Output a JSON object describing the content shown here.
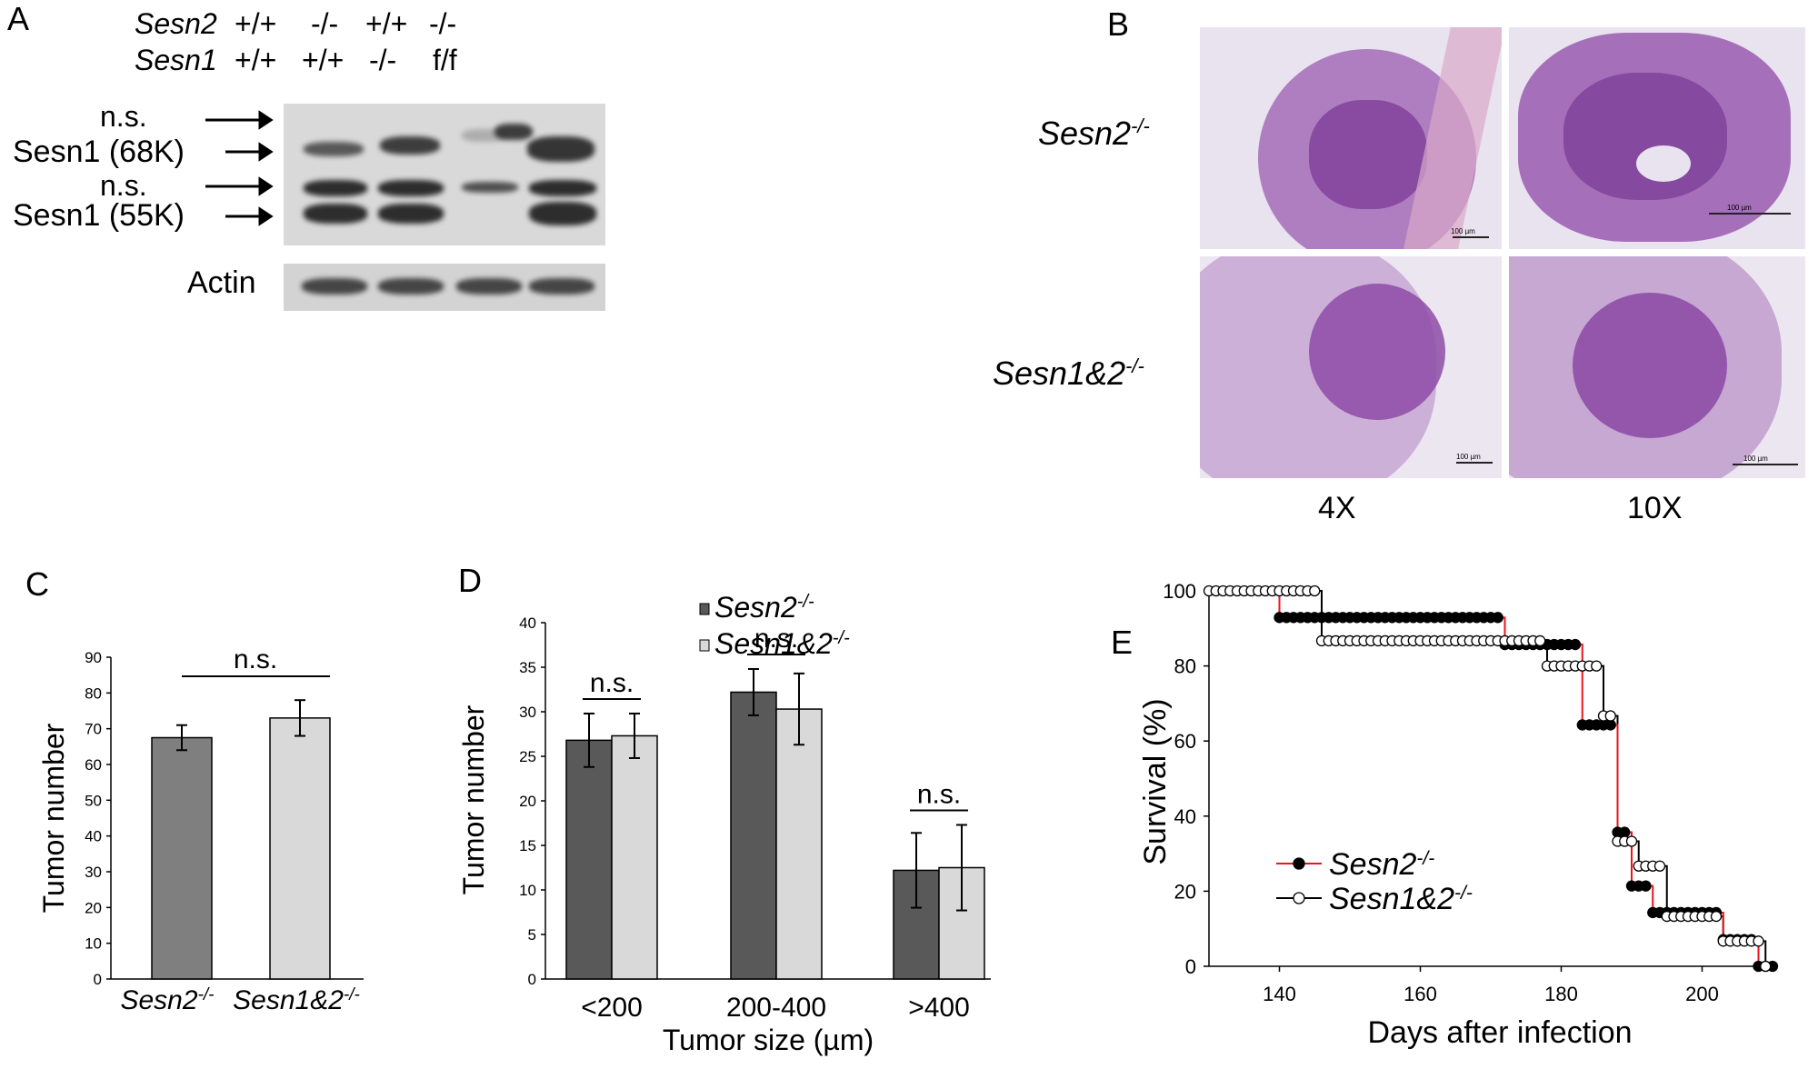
{
  "panels": {
    "A": "A",
    "B": "B",
    "C": "C",
    "D": "D",
    "E": "E"
  },
  "western_blot": {
    "row_labels": [
      "Sesn2",
      "Sesn1"
    ],
    "genotypes_sesn2": [
      "+/+",
      "-/-",
      "+/+",
      "-/-"
    ],
    "genotypes_sesn1": [
      "+/+",
      "+/+",
      "-/-",
      "f/f"
    ],
    "band_labels": [
      "n.s.",
      "Sesn1 (68K)",
      "n.s.",
      "Sesn1 (55K)"
    ],
    "loading_label": "Actin"
  },
  "histology": {
    "row_labels": [
      {
        "base": "Sesn2",
        "sup": "-/-"
      },
      {
        "base": "Sesn1&2",
        "sup": "-/-"
      }
    ],
    "magnifications": [
      "4X",
      "10X"
    ],
    "scale_bar_label": "100 µm"
  },
  "chart_data": [
    {
      "panel": "C",
      "type": "bar",
      "categories": [
        {
          "base": "Sesn2",
          "sup": "-/-"
        },
        {
          "base": "Sesn1&2",
          "sup": "-/-"
        }
      ],
      "values": [
        67.5,
        73
      ],
      "errors": [
        3.5,
        5
      ],
      "colors": [
        "#7f7f7f",
        "#d9d9d9"
      ],
      "ylabel": "Tumor number",
      "ylim": [
        0,
        90
      ],
      "yticks": [
        0,
        10,
        20,
        30,
        40,
        50,
        60,
        70,
        80,
        90
      ],
      "annotation": "n.s."
    },
    {
      "panel": "D",
      "type": "bar",
      "categories": [
        "<200",
        "200-400",
        ">400"
      ],
      "series": [
        {
          "name": {
            "base": "Sesn2",
            "sup": "-/-"
          },
          "values": [
            26.8,
            32.2,
            12.2
          ],
          "errors": [
            3,
            2.6,
            4.2
          ],
          "color": "#595959"
        },
        {
          "name": {
            "base": "Sesn1&2",
            "sup": "-/-"
          },
          "values": [
            27.3,
            30.3,
            12.5
          ],
          "errors": [
            2.5,
            4,
            4.8
          ],
          "color": "#d9d9d9"
        }
      ],
      "xlabel": "Tumor size (µm)",
      "ylabel": "Tumor number",
      "ylim": [
        0,
        40
      ],
      "yticks": [
        0,
        5,
        10,
        15,
        20,
        25,
        30,
        35,
        40
      ],
      "annotations": [
        "n.s.",
        "n.s.",
        "n.s."
      ],
      "legend_position": "top-right"
    },
    {
      "panel": "E",
      "type": "line",
      "step": true,
      "xlabel": "Days after infection",
      "ylabel": "Survival (%)",
      "xlim": [
        130,
        210
      ],
      "ylim": [
        0,
        100
      ],
      "xticks": [
        140,
        160,
        180,
        200
      ],
      "yticks": [
        0,
        20,
        40,
        60,
        80,
        100
      ],
      "legend_position": "bottom-left",
      "series": [
        {
          "name": {
            "base": "Sesn2",
            "sup": "-/-"
          },
          "line_color": "#e8161c",
          "marker": "filled",
          "x": [
            130,
            140,
            172,
            183,
            188,
            190,
            193,
            203,
            208,
            210
          ],
          "y": [
            100,
            92.9,
            85.7,
            64.3,
            35.7,
            21.4,
            14.3,
            7.1,
            0,
            0
          ],
          "marker_x_range": [
            140,
            210
          ],
          "marker_x_step": 1
        },
        {
          "name": {
            "base": "Sesn1&2",
            "sup": "-/-"
          },
          "line_color": "#000000",
          "marker": "open",
          "x": [
            130,
            146,
            178,
            186,
            188,
            191,
            195,
            203,
            209
          ],
          "y": [
            100,
            86.7,
            80,
            66.7,
            33.3,
            26.7,
            13.3,
            6.7,
            0
          ],
          "marker_x_range": [
            130,
            209
          ],
          "marker_x_step": 1
        }
      ]
    }
  ]
}
